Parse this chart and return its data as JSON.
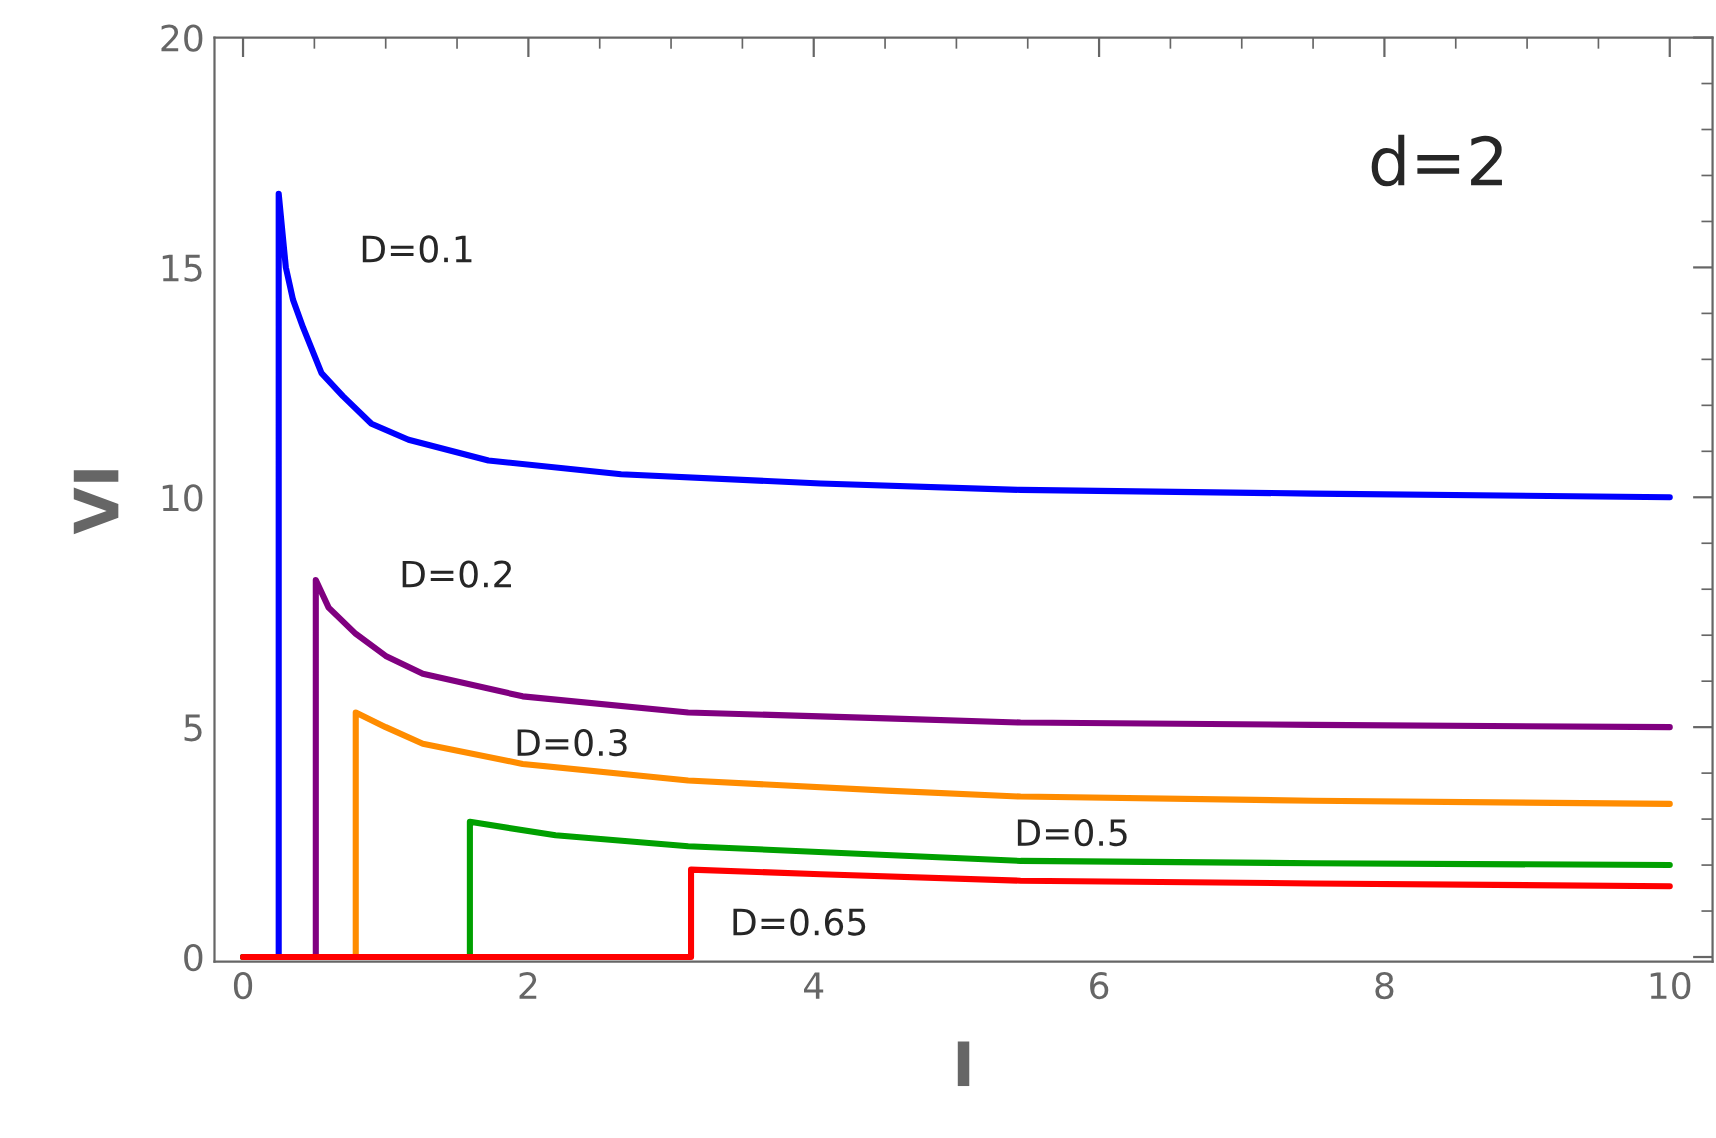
{
  "chart_data": {
    "type": "line",
    "xlabel": "I",
    "ylabel": "VI",
    "xlim": [
      -0.2,
      10.3
    ],
    "ylim": [
      -0.1,
      20
    ],
    "xticks": [
      0,
      2,
      4,
      6,
      8,
      10
    ],
    "yticks": [
      0,
      5,
      10,
      15,
      20
    ],
    "grid": false,
    "legend": false,
    "marker": "none",
    "line_style": "solid",
    "series": [
      {
        "name": "D=0.1",
        "color": "#0000ff",
        "x": [
          0,
          0.25,
          0.25,
          0.3,
          0.35,
          0.42,
          0.55,
          0.7,
          0.9,
          1.16,
          1.72,
          2.65,
          4.05,
          5.45,
          7.5,
          10
        ],
        "values": [
          0,
          0,
          16.6,
          15.0,
          14.3,
          13.7,
          12.7,
          12.2,
          11.6,
          11.25,
          10.8,
          10.5,
          10.3,
          10.16,
          10.08,
          10.0
        ]
      },
      {
        "name": "D=0.2",
        "color": "#800080",
        "x": [
          0,
          0.51,
          0.51,
          0.6,
          0.79,
          1.0,
          1.26,
          1.96,
          3.12,
          4.51,
          5.45,
          7.5,
          10
        ],
        "values": [
          0,
          0,
          8.2,
          7.6,
          7.03,
          6.55,
          6.16,
          5.67,
          5.32,
          5.19,
          5.1,
          5.05,
          5.0
        ]
      },
      {
        "name": "D=0.3",
        "color": "#ff8c00",
        "x": [
          0,
          0.79,
          0.79,
          1.0,
          1.26,
          1.96,
          3.12,
          4.51,
          5.45,
          7.5,
          10
        ],
        "values": [
          0,
          0,
          5.32,
          5.0,
          4.64,
          4.2,
          3.84,
          3.62,
          3.49,
          3.4,
          3.33
        ]
      },
      {
        "name": "D=0.5",
        "color": "#00a000",
        "x": [
          0,
          1.59,
          1.59,
          2.19,
          3.12,
          4.51,
          5.45,
          7.5,
          10
        ],
        "values": [
          0,
          0,
          2.94,
          2.65,
          2.41,
          2.22,
          2.09,
          2.04,
          2.0
        ]
      },
      {
        "name": "D=0.65",
        "color": "#ff0000",
        "x": [
          0,
          3.14,
          3.14,
          4.05,
          5.45,
          7.5,
          10
        ],
        "values": [
          0,
          0,
          1.9,
          1.8,
          1.66,
          1.6,
          1.54
        ]
      }
    ],
    "annotations": [
      "d=2"
    ]
  }
}
